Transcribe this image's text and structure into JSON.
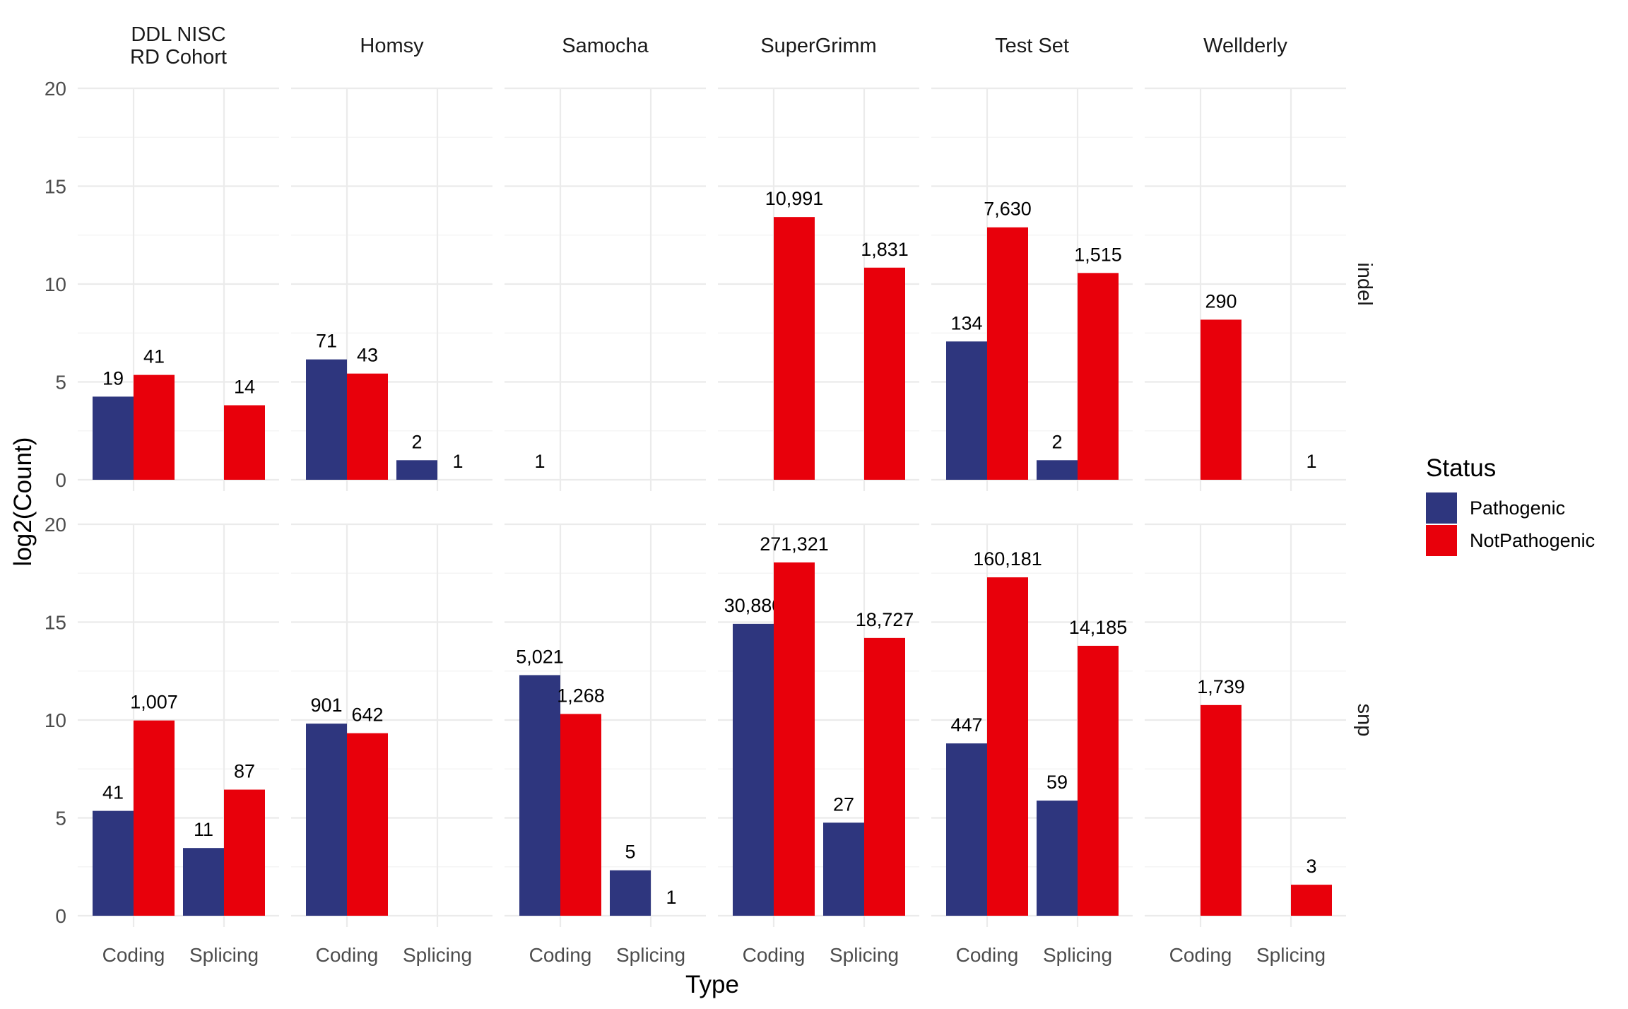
{
  "chart_data": {
    "type": "bar",
    "xlabel": "Type",
    "ylabel": "log2(Count)",
    "ylim": [
      0,
      20
    ],
    "y_ticks": [
      0,
      5,
      10,
      15,
      20
    ],
    "categories": [
      "Coding",
      "Splicing"
    ],
    "columns": [
      "DDL NISC RD Cohort",
      "Homsy",
      "Samocha",
      "SuperGrimm",
      "Test Set",
      "Wellderly"
    ],
    "column_labels": [
      [
        "DDL NISC",
        "RD Cohort"
      ],
      [
        "Homsy"
      ],
      [
        "Samocha"
      ],
      [
        "SuperGrimm"
      ],
      [
        "Test Set"
      ],
      [
        "Wellderly"
      ]
    ],
    "rows": [
      "indel",
      "snp"
    ],
    "grid": true,
    "legend": {
      "title": "Status",
      "position": "right",
      "entries": [
        {
          "name": "Pathogenic",
          "color": "#2e367e"
        },
        {
          "name": "NotPathogenic",
          "color": "#e8000b"
        }
      ]
    },
    "data": {
      "indel": {
        "DDL NISC RD Cohort": {
          "Coding": {
            "Pathogenic": 19,
            "NotPathogenic": 41
          },
          "Splicing": {
            "Pathogenic": null,
            "NotPathogenic": 14
          }
        },
        "Homsy": {
          "Coding": {
            "Pathogenic": 71,
            "NotPathogenic": 43
          },
          "Splicing": {
            "Pathogenic": 2,
            "NotPathogenic": 1
          }
        },
        "Samocha": {
          "Coding": {
            "Pathogenic": 1,
            "NotPathogenic": null
          },
          "Splicing": {
            "Pathogenic": null,
            "NotPathogenic": null
          }
        },
        "SuperGrimm": {
          "Coding": {
            "Pathogenic": null,
            "NotPathogenic": 10991
          },
          "Splicing": {
            "Pathogenic": null,
            "NotPathogenic": 1831
          }
        },
        "Test Set": {
          "Coding": {
            "Pathogenic": 134,
            "NotPathogenic": 7630
          },
          "Splicing": {
            "Pathogenic": 2,
            "NotPathogenic": 1515
          }
        },
        "Wellderly": {
          "Coding": {
            "Pathogenic": null,
            "NotPathogenic": 290
          },
          "Splicing": {
            "Pathogenic": null,
            "NotPathogenic": 1
          }
        }
      },
      "snp": {
        "DDL NISC RD Cohort": {
          "Coding": {
            "Pathogenic": 41,
            "NotPathogenic": 1007
          },
          "Splicing": {
            "Pathogenic": 11,
            "NotPathogenic": 87
          }
        },
        "Homsy": {
          "Coding": {
            "Pathogenic": 901,
            "NotPathogenic": 642
          },
          "Splicing": {
            "Pathogenic": null,
            "NotPathogenic": null
          }
        },
        "Samocha": {
          "Coding": {
            "Pathogenic": 5021,
            "NotPathogenic": 1268
          },
          "Splicing": {
            "Pathogenic": 5,
            "NotPathogenic": 1
          }
        },
        "SuperGrimm": {
          "Coding": {
            "Pathogenic": 30880,
            "NotPathogenic": 271321
          },
          "Splicing": {
            "Pathogenic": 27,
            "NotPathogenic": 18727
          }
        },
        "Test Set": {
          "Coding": {
            "Pathogenic": 447,
            "NotPathogenic": 160181
          },
          "Splicing": {
            "Pathogenic": 59,
            "NotPathogenic": 14185
          }
        },
        "Wellderly": {
          "Coding": {
            "Pathogenic": null,
            "NotPathogenic": 1739
          },
          "Splicing": {
            "Pathogenic": null,
            "NotPathogenic": 3
          }
        }
      }
    }
  }
}
